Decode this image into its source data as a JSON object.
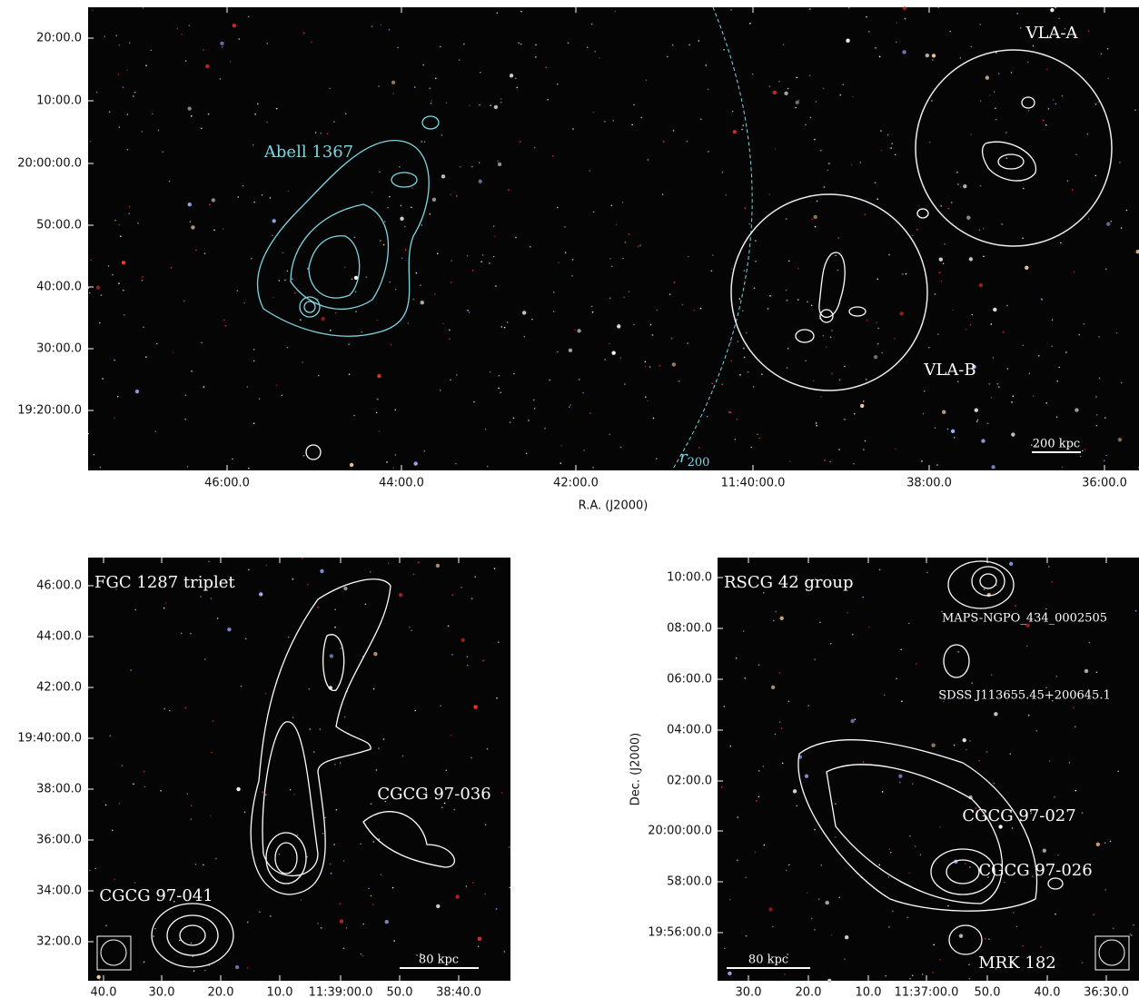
{
  "top": {
    "yticks": [
      "20:00.0",
      "10:00.0",
      "20:00:00.0",
      "50:00.0",
      "40:00.0",
      "30:00.0",
      "19:20:00.0"
    ],
    "xticks": [
      "46:00.0",
      "44:00.0",
      "42:00.0",
      "11:40:00.0",
      "38:00.0",
      "36:00.0"
    ],
    "xlabel": "R.A. (J2000)",
    "annotations": {
      "cluster": "Abell 1367",
      "vla_a": "VLA-A",
      "vla_b": "VLA-B",
      "radius": {
        "symbol": "r",
        "subscript": "200"
      },
      "scale": "200 kpc"
    }
  },
  "bottom_left": {
    "yticks": [
      "46:00.0",
      "44:00.0",
      "42:00.0",
      "19:40:00.0",
      "38:00.0",
      "36:00.0",
      "34:00.0",
      "32:00.0"
    ],
    "xticks": [
      "40.0",
      "30.0",
      "20.0",
      "10.0",
      "11:39:00.0",
      "50.0",
      "38:40.0"
    ],
    "annotations": {
      "title": "FGC 1287 triplet",
      "galaxy_1": "CGCG 97-036",
      "galaxy_2": "CGCG 97-041",
      "scale": "80 kpc"
    }
  },
  "bottom_right": {
    "yticks": [
      "10:00.0",
      "08:00.0",
      "06:00.0",
      "04:00.0",
      "02:00.0",
      "20:00:00.0",
      "58:00.0",
      "19:56:00.0"
    ],
    "xticks": [
      "30.0",
      "20.0",
      "10.0",
      "11:37:00.0",
      "50.0",
      "40.0",
      "36:30.0"
    ],
    "ylabel": "Dec. (J2000)",
    "annotations": {
      "title": "RSCG 42 group",
      "galaxy_1": "MAPS-NGPO_434_0002505",
      "galaxy_2": "SDSS J113655.45+200645.1",
      "galaxy_3": "CGCG 97-027",
      "galaxy_4": "CGCG 97-026",
      "galaxy_5": "MRK 182",
      "scale": "80 kpc"
    }
  }
}
